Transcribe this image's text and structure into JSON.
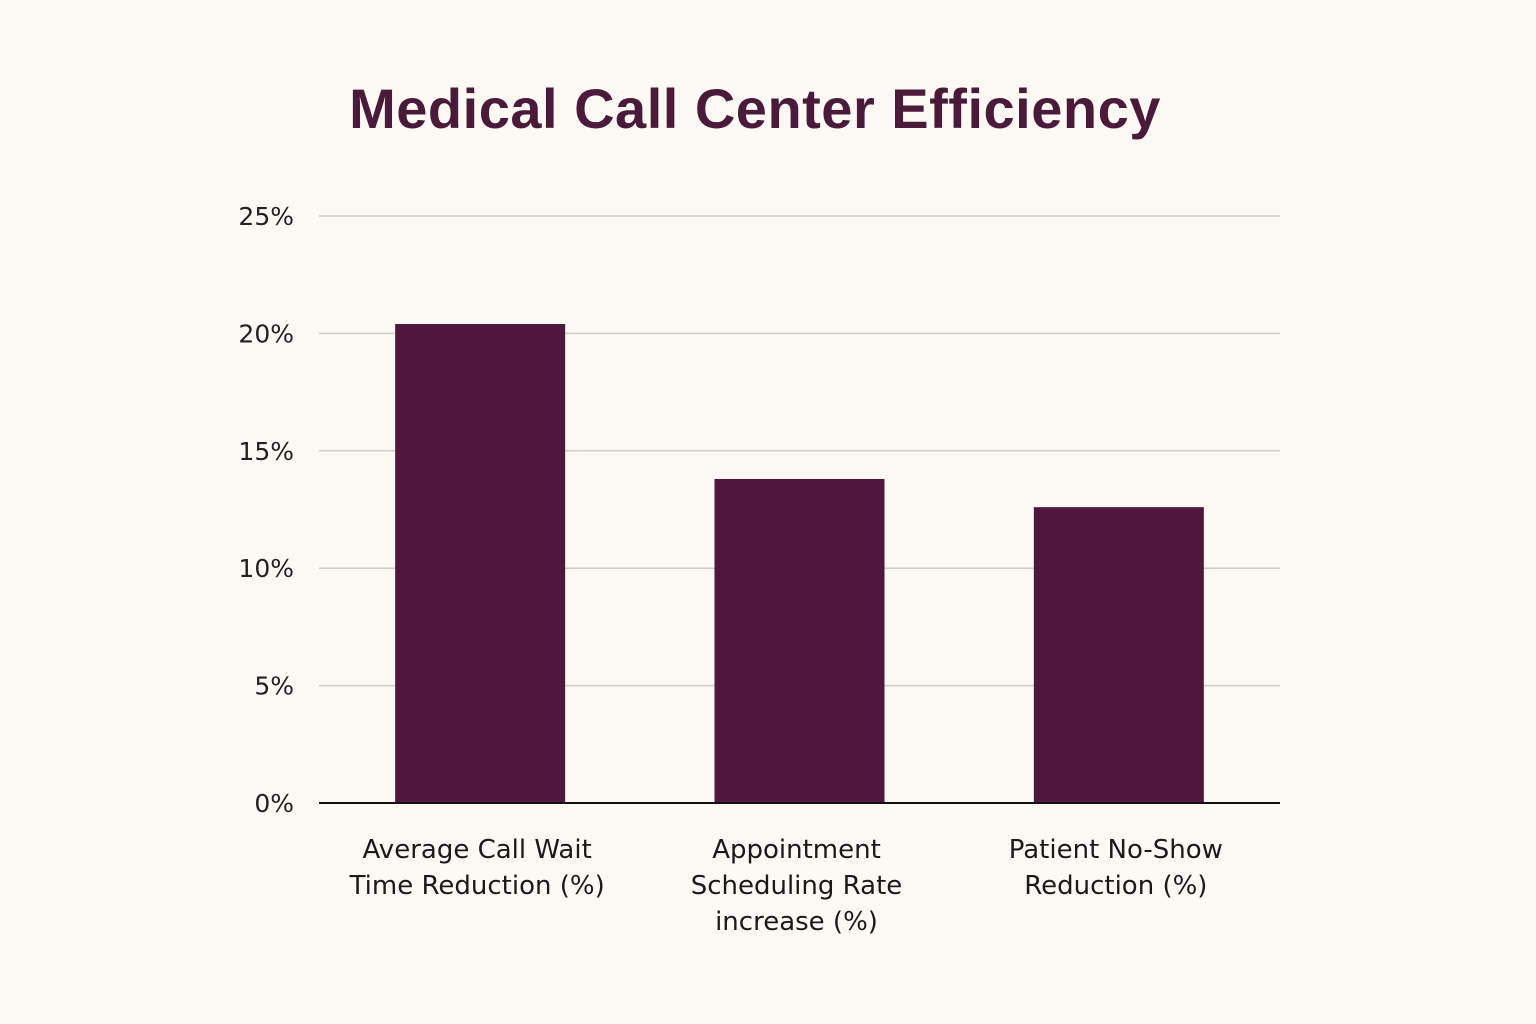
{
  "chart_data": {
    "type": "bar",
    "title": "Medical Call Center Efficiency",
    "categories": [
      [
        "Average Call Wait",
        "Time Reduction (%)"
      ],
      [
        "Appointment",
        "Scheduling Rate",
        "increase (%)"
      ],
      [
        "Patient No-Show",
        "Reduction (%)"
      ]
    ],
    "values": [
      20.4,
      13.8,
      12.6
    ],
    "ylim": [
      0,
      25
    ],
    "yticks": [
      "0%",
      "5%",
      "10%",
      "15%",
      "20%",
      "25%"
    ],
    "grid": true,
    "bar_color": "#4f173c",
    "xlabel": "",
    "ylabel": ""
  }
}
